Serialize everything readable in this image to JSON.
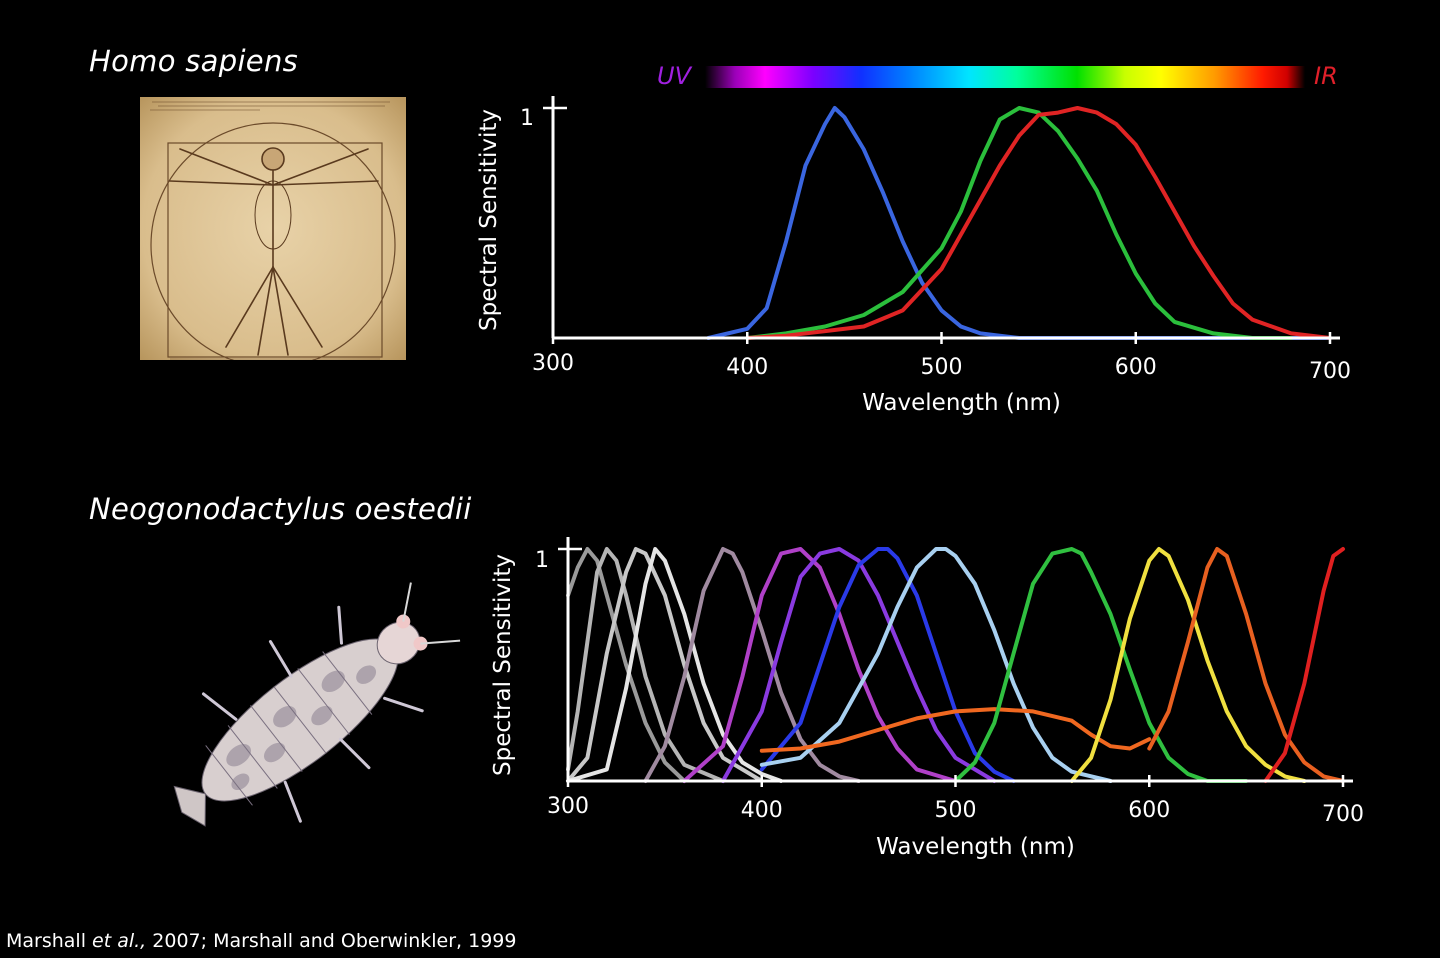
{
  "human": {
    "species": "Homo sapiens"
  },
  "shrimp": {
    "species": "Neogonodactylus oestedii"
  },
  "spectrum": {
    "uv_label": "UV",
    "ir_label": "IR"
  },
  "citation": {
    "author1": "Marshall",
    "etal": "et al.,",
    "rest": " 2007; Marshall and Oberwinkler, 1999"
  },
  "chart_data": [
    {
      "type": "line",
      "title": "",
      "xlabel": "Wavelength (nm)",
      "ylabel": "Spectral Sensitivity",
      "xlim": [
        300,
        700
      ],
      "ylim": [
        0,
        1
      ],
      "x_ticks": [
        "300",
        "400",
        "500",
        "600",
        "700"
      ],
      "y_ticks": [
        "1"
      ],
      "series": [
        {
          "color": "#3a66e0",
          "x": [
            380,
            400,
            410,
            420,
            430,
            440,
            445,
            450,
            460,
            470,
            480,
            490,
            500,
            510,
            520,
            530,
            540,
            560,
            600,
            650,
            700
          ],
          "y": [
            0.0,
            0.04,
            0.13,
            0.42,
            0.75,
            0.93,
            1.0,
            0.96,
            0.82,
            0.63,
            0.42,
            0.24,
            0.12,
            0.05,
            0.02,
            0.01,
            0.0,
            0.0,
            0.0,
            0.0,
            0.0
          ]
        },
        {
          "color": "#2bbf3c",
          "x": [
            400,
            420,
            440,
            460,
            480,
            500,
            510,
            520,
            530,
            540,
            550,
            560,
            570,
            580,
            590,
            600,
            610,
            620,
            640,
            660,
            680
          ],
          "y": [
            0.0,
            0.02,
            0.05,
            0.1,
            0.2,
            0.39,
            0.55,
            0.77,
            0.95,
            1.0,
            0.98,
            0.9,
            0.78,
            0.64,
            0.45,
            0.28,
            0.15,
            0.07,
            0.02,
            0.0,
            0.0
          ]
        },
        {
          "color": "#e02424",
          "x": [
            400,
            420,
            440,
            460,
            480,
            500,
            520,
            530,
            540,
            550,
            560,
            570,
            580,
            590,
            600,
            610,
            620,
            630,
            640,
            650,
            660,
            680,
            700
          ],
          "y": [
            0.0,
            0.01,
            0.03,
            0.05,
            0.12,
            0.3,
            0.6,
            0.75,
            0.88,
            0.97,
            0.98,
            1.0,
            0.98,
            0.93,
            0.84,
            0.7,
            0.55,
            0.4,
            0.27,
            0.15,
            0.08,
            0.02,
            0.0
          ]
        }
      ]
    },
    {
      "type": "line",
      "title": "",
      "xlabel": "Wavelength (nm)",
      "ylabel": "Spectral Sensitivity",
      "xlim": [
        300,
        700
      ],
      "ylim": [
        0,
        1
      ],
      "x_ticks": [
        "300",
        "400",
        "500",
        "600",
        "700"
      ],
      "y_ticks": [
        "1"
      ],
      "series": [
        {
          "color": "#9a9a9a",
          "x": [
            300,
            305,
            310,
            315,
            320,
            330,
            340,
            350,
            360
          ],
          "y": [
            0.8,
            0.92,
            1.0,
            0.95,
            0.8,
            0.5,
            0.25,
            0.08,
            0.0
          ]
        },
        {
          "color": "#b5b5b5",
          "x": [
            300,
            305,
            310,
            315,
            320,
            325,
            330,
            340,
            350,
            360,
            380
          ],
          "y": [
            0.05,
            0.3,
            0.6,
            0.9,
            1.0,
            0.95,
            0.8,
            0.45,
            0.2,
            0.07,
            0.0
          ]
        },
        {
          "color": "#c8c8c8",
          "x": [
            300,
            310,
            320,
            330,
            335,
            340,
            350,
            360,
            370,
            380,
            400
          ],
          "y": [
            0.0,
            0.1,
            0.55,
            0.9,
            1.0,
            0.98,
            0.8,
            0.5,
            0.25,
            0.1,
            0.0
          ]
        },
        {
          "color": "#e5e5e5",
          "x": [
            300,
            320,
            330,
            340,
            345,
            350,
            360,
            370,
            380,
            390,
            400,
            410
          ],
          "y": [
            0.0,
            0.05,
            0.4,
            0.85,
            1.0,
            0.95,
            0.72,
            0.42,
            0.2,
            0.08,
            0.03,
            0.0
          ]
        },
        {
          "color": "#a08aa0",
          "x": [
            340,
            350,
            360,
            370,
            380,
            385,
            390,
            400,
            410,
            420,
            430,
            440,
            450
          ],
          "y": [
            0.0,
            0.15,
            0.45,
            0.82,
            1.0,
            0.98,
            0.9,
            0.65,
            0.38,
            0.18,
            0.07,
            0.02,
            0.0
          ]
        },
        {
          "color": "#b040c8",
          "x": [
            360,
            380,
            390,
            400,
            410,
            420,
            430,
            440,
            450,
            460,
            470,
            480,
            500
          ],
          "y": [
            0.0,
            0.15,
            0.45,
            0.8,
            0.98,
            1.0,
            0.92,
            0.72,
            0.48,
            0.28,
            0.14,
            0.05,
            0.0
          ]
        },
        {
          "color": "#8a3ae0",
          "x": [
            380,
            400,
            410,
            420,
            430,
            440,
            450,
            460,
            470,
            480,
            490,
            500,
            520
          ],
          "y": [
            0.0,
            0.3,
            0.6,
            0.88,
            0.98,
            1.0,
            0.95,
            0.8,
            0.6,
            0.4,
            0.22,
            0.1,
            0.0
          ]
        },
        {
          "color": "#2a3ae8",
          "x": [
            400,
            420,
            430,
            440,
            450,
            460,
            465,
            470,
            480,
            490,
            500,
            510,
            520,
            530
          ],
          "y": [
            0.05,
            0.25,
            0.5,
            0.75,
            0.93,
            1.0,
            1.0,
            0.96,
            0.8,
            0.55,
            0.3,
            0.12,
            0.04,
            0.0
          ]
        },
        {
          "color": "#a8d0f0",
          "x": [
            400,
            420,
            440,
            460,
            470,
            480,
            490,
            495,
            500,
            510,
            520,
            530,
            540,
            550,
            560,
            580
          ],
          "y": [
            0.07,
            0.1,
            0.25,
            0.55,
            0.75,
            0.92,
            1.0,
            1.0,
            0.97,
            0.85,
            0.65,
            0.42,
            0.23,
            0.1,
            0.04,
            0.0
          ]
        },
        {
          "color": "#f06820",
          "x": [
            400,
            420,
            440,
            460,
            480,
            500,
            520,
            540,
            560,
            570,
            580,
            590,
            600
          ],
          "y": [
            0.13,
            0.14,
            0.17,
            0.22,
            0.27,
            0.3,
            0.31,
            0.3,
            0.26,
            0.2,
            0.15,
            0.14,
            0.18
          ]
        },
        {
          "color": "#30c040",
          "x": [
            500,
            510,
            520,
            530,
            540,
            550,
            560,
            565,
            570,
            580,
            590,
            600,
            610,
            620,
            630,
            650
          ],
          "y": [
            0.0,
            0.08,
            0.25,
            0.55,
            0.85,
            0.98,
            1.0,
            0.98,
            0.9,
            0.72,
            0.48,
            0.25,
            0.1,
            0.03,
            0.0,
            0.0
          ]
        },
        {
          "color": "#f0e040",
          "x": [
            560,
            570,
            580,
            590,
            600,
            605,
            610,
            620,
            630,
            640,
            650,
            660,
            670,
            680
          ],
          "y": [
            0.0,
            0.1,
            0.35,
            0.7,
            0.95,
            1.0,
            0.97,
            0.78,
            0.52,
            0.3,
            0.15,
            0.07,
            0.02,
            0.0
          ]
        },
        {
          "color": "#e86020",
          "x": [
            600,
            610,
            620,
            630,
            635,
            640,
            650,
            660,
            670,
            680,
            690,
            700
          ],
          "y": [
            0.14,
            0.3,
            0.6,
            0.92,
            1.0,
            0.97,
            0.72,
            0.42,
            0.2,
            0.08,
            0.02,
            0.0
          ]
        },
        {
          "color": "#e02020",
          "x": [
            660,
            670,
            680,
            690,
            695,
            700
          ],
          "y": [
            0.0,
            0.12,
            0.42,
            0.82,
            0.97,
            1.0
          ]
        }
      ]
    }
  ]
}
